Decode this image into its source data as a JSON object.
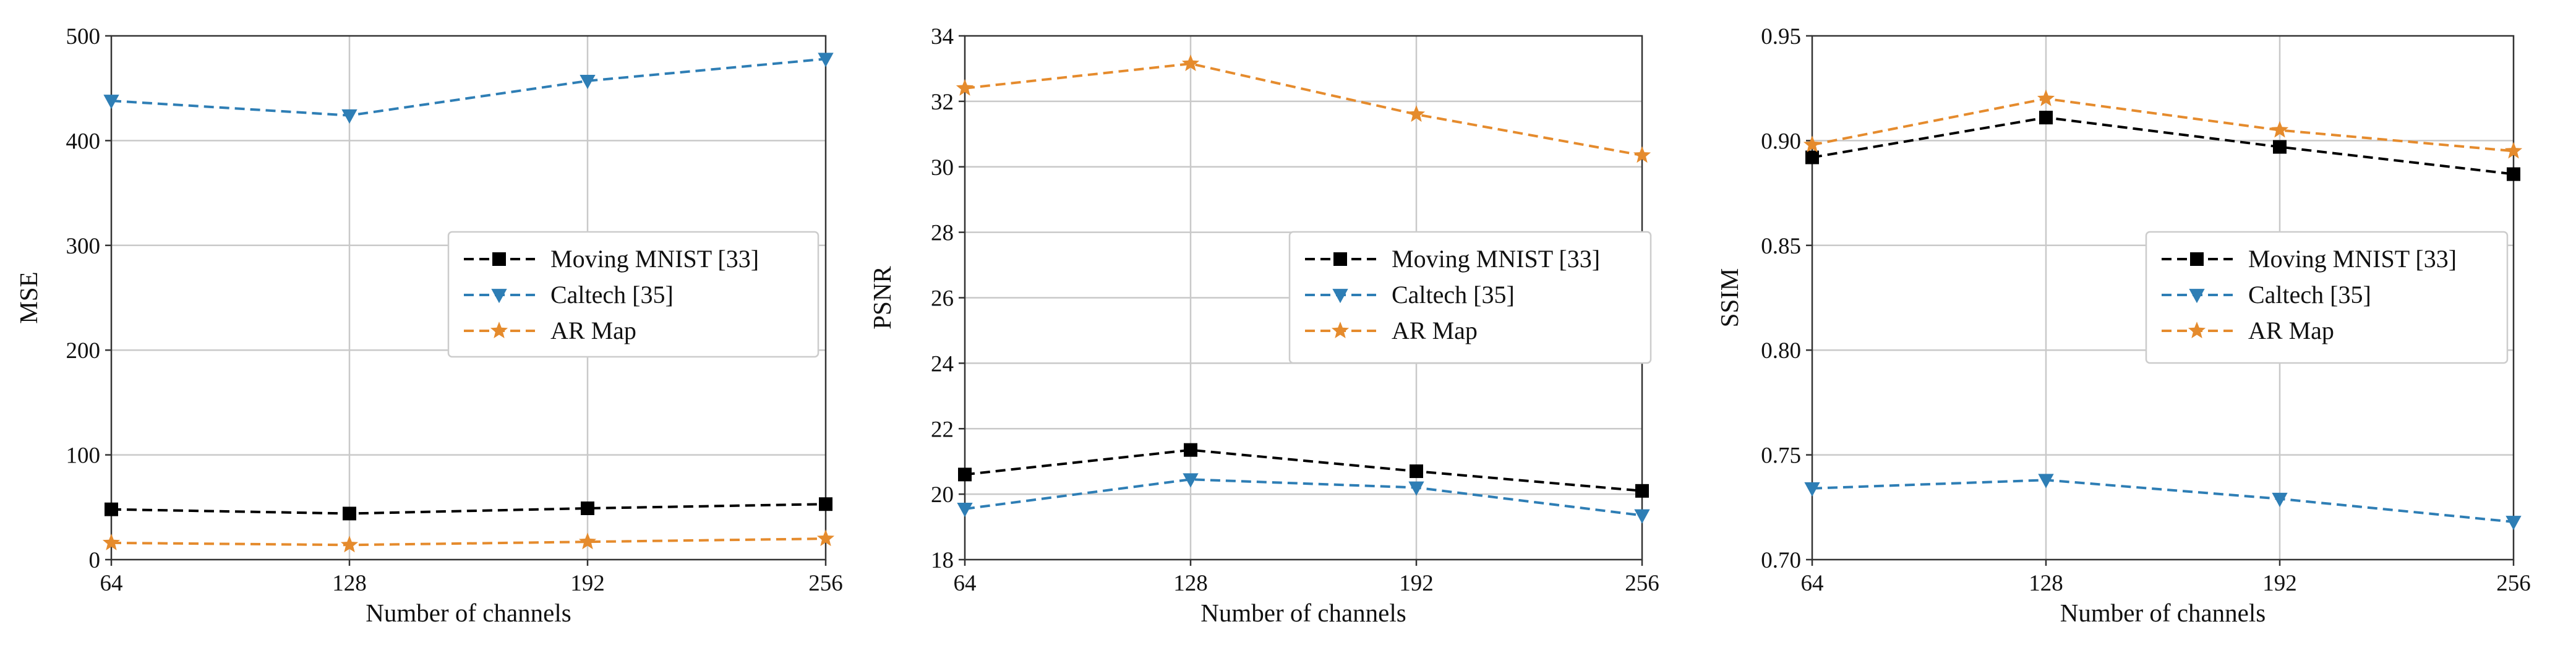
{
  "figure_label": "Three line plots of MSE, PSNR and SSIM versus number of channels",
  "chart_data": [
    {
      "type": "line",
      "title": "",
      "xlabel": "Number of channels",
      "ylabel": "MSE",
      "x": [
        64,
        128,
        192,
        256
      ],
      "xticks": [
        "64",
        "128",
        "192",
        "256"
      ],
      "ylim": [
        0,
        500
      ],
      "yticks": [
        "0",
        "100",
        "200",
        "300",
        "400",
        "500"
      ],
      "ytick_values": [
        0,
        100,
        200,
        300,
        400,
        500
      ],
      "grid": true,
      "legend_position": "center-right",
      "series": [
        {
          "name": "Moving MNIST [33]",
          "color": "#000000",
          "marker": "square",
          "values": [
            48,
            44,
            49,
            53
          ]
        },
        {
          "name": "Caltech [35]",
          "color": "#2e7eb5",
          "marker": "triangle-down",
          "values": [
            438,
            424,
            457,
            478
          ]
        },
        {
          "name": "AR Map",
          "color": "#e58b2d",
          "marker": "star",
          "values": [
            16,
            14,
            17,
            20
          ]
        }
      ]
    },
    {
      "type": "line",
      "title": "",
      "xlabel": "Number of channels",
      "ylabel": "PSNR",
      "x": [
        64,
        128,
        192,
        256
      ],
      "xticks": [
        "64",
        "128",
        "192",
        "256"
      ],
      "ylim": [
        18,
        34
      ],
      "yticks": [
        "18",
        "20",
        "22",
        "24",
        "26",
        "28",
        "30",
        "32",
        "34"
      ],
      "ytick_values": [
        18,
        20,
        22,
        24,
        26,
        28,
        30,
        32,
        34
      ],
      "grid": true,
      "legend_position": "center-right",
      "series": [
        {
          "name": "Moving MNIST [33]",
          "color": "#000000",
          "marker": "square",
          "values": [
            20.6,
            21.35,
            20.7,
            20.1
          ]
        },
        {
          "name": "Caltech [35]",
          "color": "#2e7eb5",
          "marker": "triangle-down",
          "values": [
            19.55,
            20.45,
            20.2,
            19.35
          ]
        },
        {
          "name": "AR Map",
          "color": "#e58b2d",
          "marker": "star",
          "values": [
            32.4,
            33.15,
            31.6,
            30.35
          ]
        }
      ]
    },
    {
      "type": "line",
      "title": "",
      "xlabel": "Number of channels",
      "ylabel": "SSIM",
      "x": [
        64,
        128,
        192,
        256
      ],
      "xticks": [
        "64",
        "128",
        "192",
        "256"
      ],
      "ylim": [
        0.7,
        0.95
      ],
      "yticks": [
        "0.70",
        "0.75",
        "0.80",
        "0.85",
        "0.90",
        "0.95"
      ],
      "ytick_values": [
        0.7,
        0.75,
        0.8,
        0.85,
        0.9,
        0.95
      ],
      "grid": true,
      "legend_position": "center-right",
      "series": [
        {
          "name": "Moving MNIST [33]",
          "color": "#000000",
          "marker": "square",
          "values": [
            0.892,
            0.911,
            0.897,
            0.884
          ]
        },
        {
          "name": "Caltech [35]",
          "color": "#2e7eb5",
          "marker": "triangle-down",
          "values": [
            0.734,
            0.738,
            0.729,
            0.718
          ]
        },
        {
          "name": "AR Map",
          "color": "#e58b2d",
          "marker": "star",
          "values": [
            0.898,
            0.92,
            0.905,
            0.895
          ]
        }
      ]
    }
  ]
}
